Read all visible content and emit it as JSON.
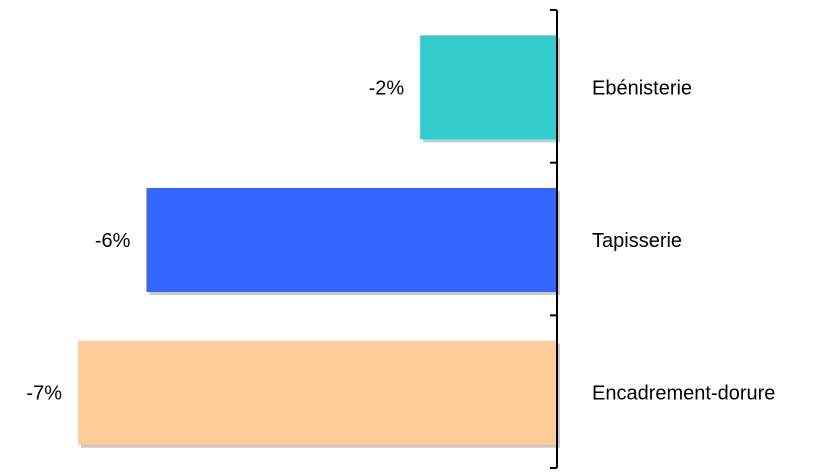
{
  "chart_data": {
    "type": "bar",
    "orientation": "horizontal",
    "categories": [
      "Ebénisterie",
      "Tapisserie",
      "Encadrement-dorure"
    ],
    "values": [
      -2,
      -6,
      -7
    ],
    "value_labels": [
      "-2%",
      "-6%",
      "-7%"
    ],
    "colors": [
      "#33CCCC",
      "#3366FF",
      "#FFCC99"
    ],
    "xlim": [
      -7,
      0
    ],
    "title": "",
    "xlabel": "",
    "ylabel": "",
    "grid": false,
    "legend": "none"
  }
}
